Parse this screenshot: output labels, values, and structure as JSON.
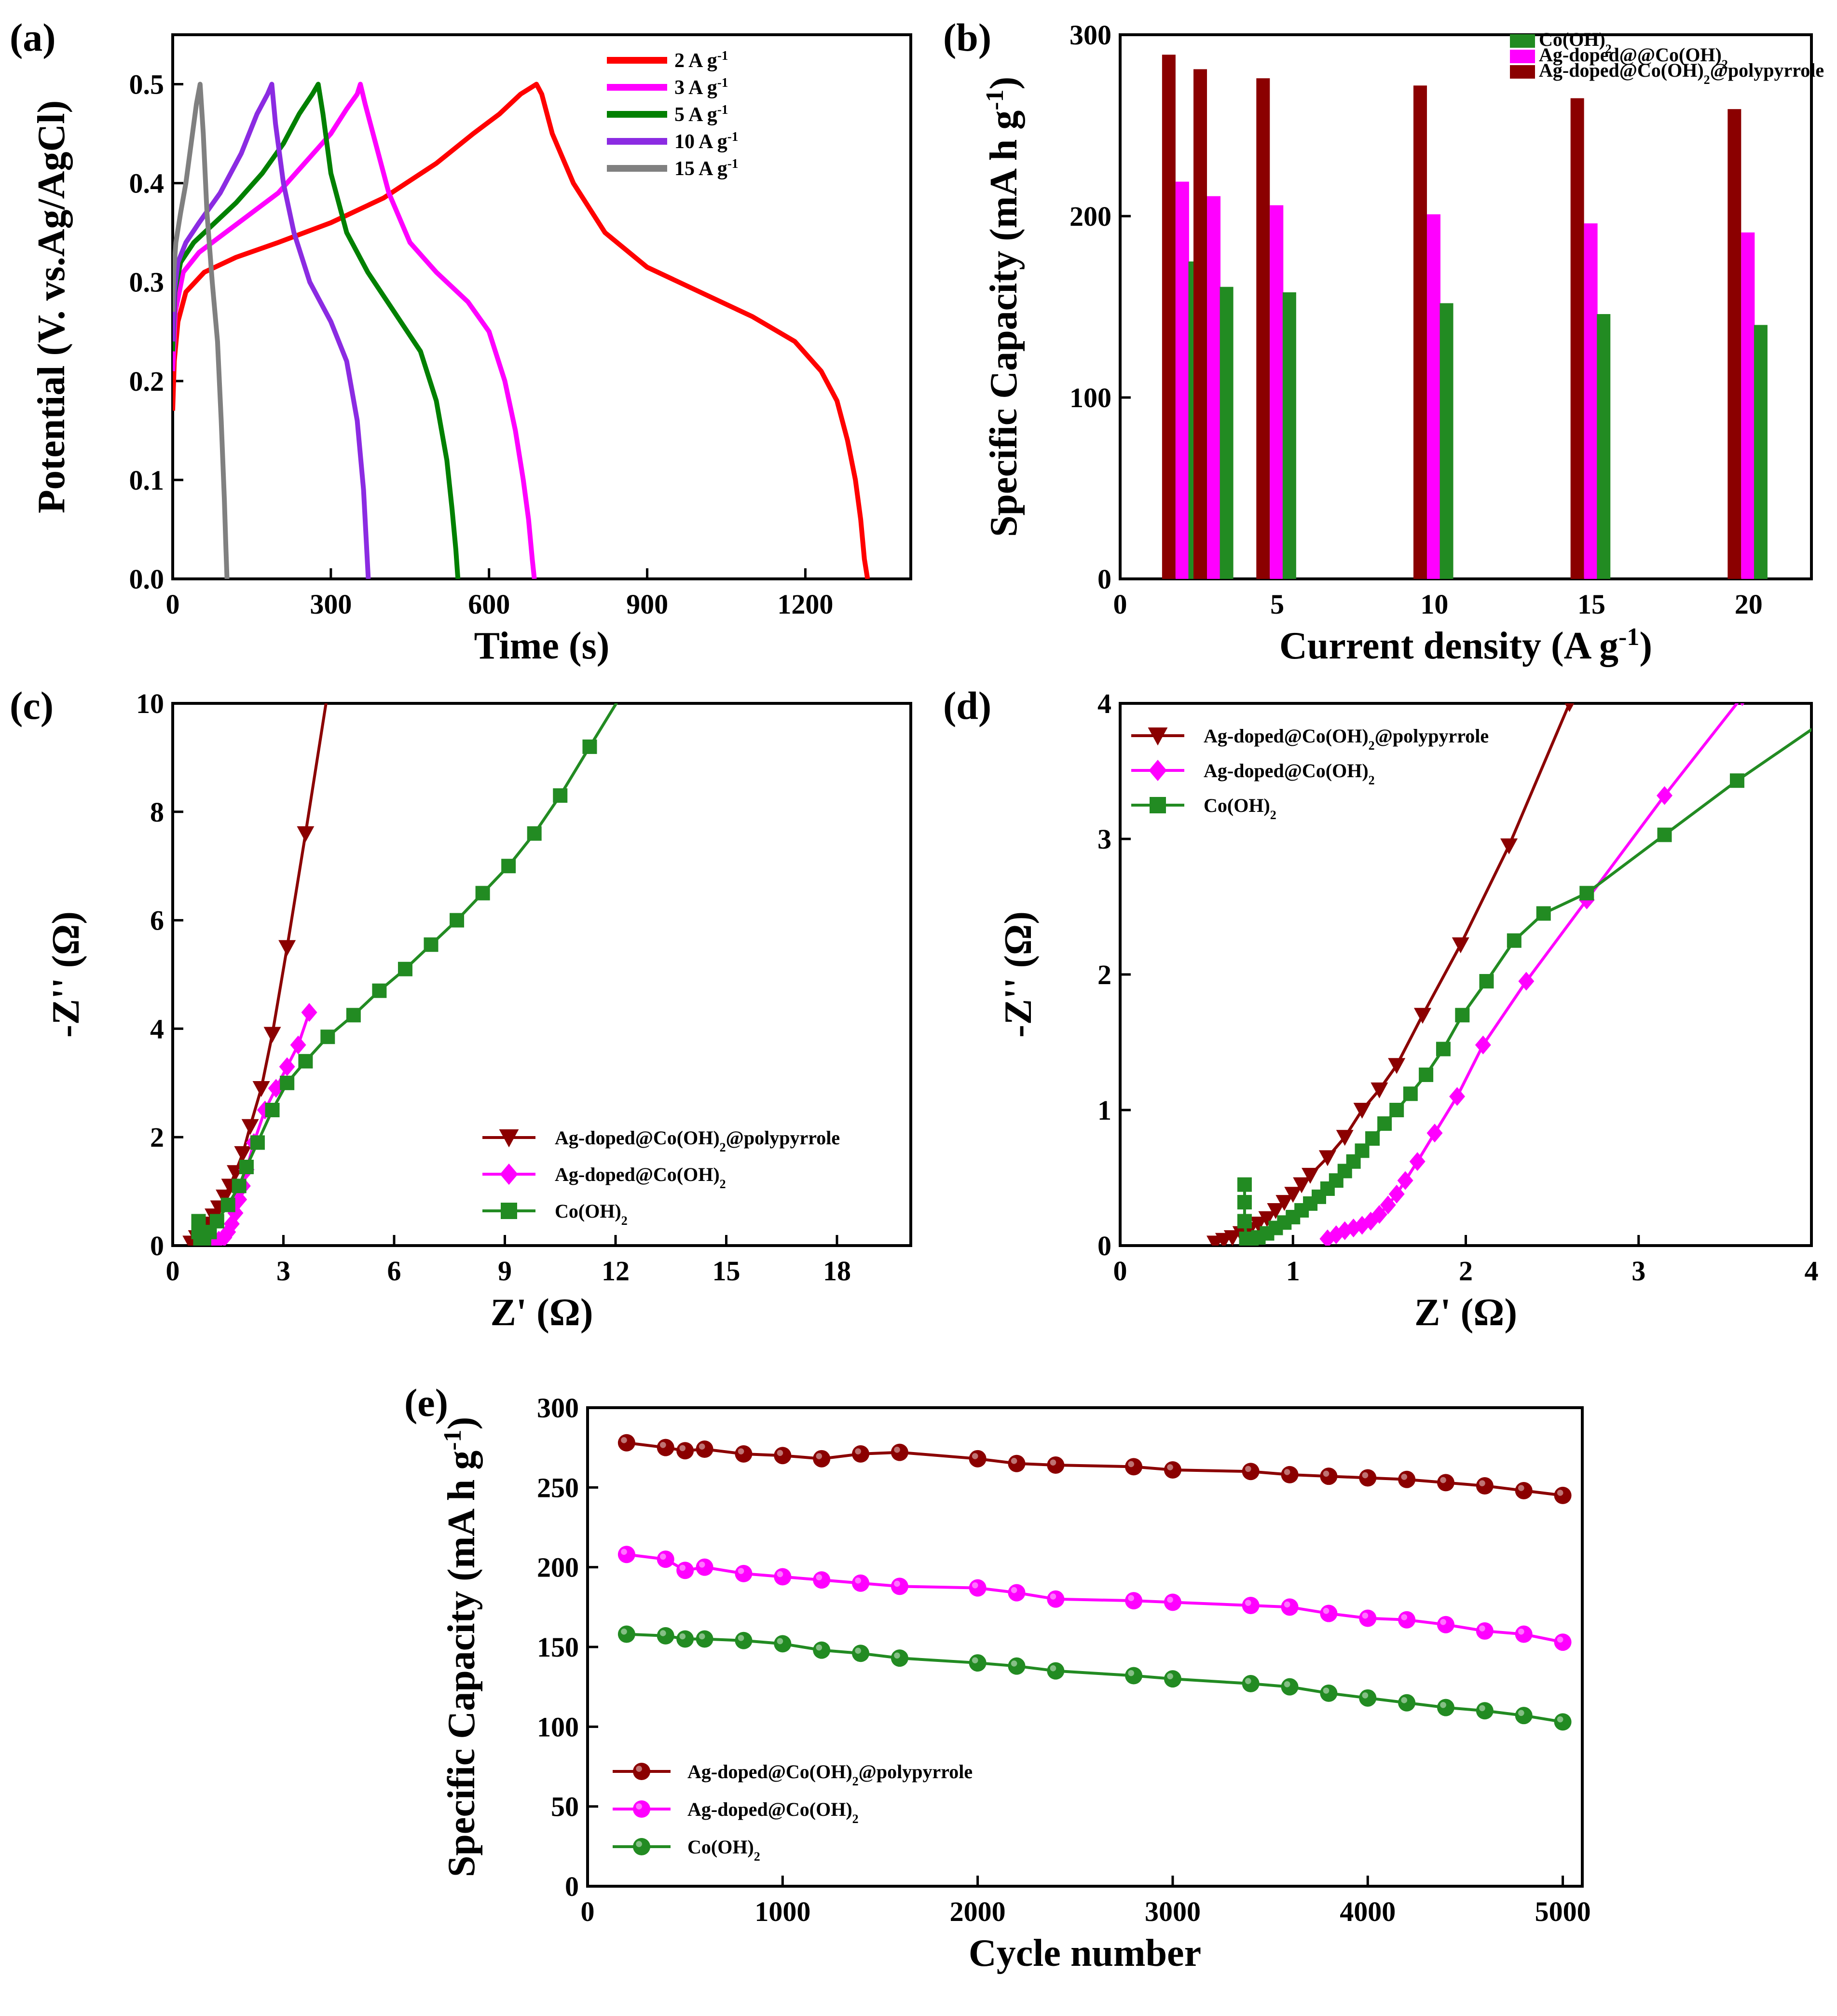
{
  "chart_data": [
    {
      "id": "a",
      "type": "line",
      "panel_label": "(a)",
      "xlabel": "Time (s)",
      "ylabel": "Potential (V. vs.Ag/AgCl)",
      "xlim": [
        0,
        1400
      ],
      "ylim": [
        0,
        0.55
      ],
      "xticks": [
        0,
        300,
        600,
        900,
        1200
      ],
      "yticks": [
        0.0,
        0.1,
        0.2,
        0.3,
        0.4,
        0.5
      ],
      "ytick_labels": [
        "0.0",
        "0.1",
        "0.2",
        "0.3",
        "0.4",
        "0.5"
      ],
      "series": [
        {
          "name": "2 A g",
          "sup": "-1",
          "color": "#ff0000",
          "x": [
            0,
            3,
            10,
            25,
            60,
            120,
            200,
            300,
            400,
            500,
            570,
            620,
            660,
            690,
            700,
            720,
            760,
            820,
            900,
            1000,
            1100,
            1180,
            1230,
            1260,
            1280,
            1295,
            1305,
            1312,
            1318
          ],
          "y": [
            0.17,
            0.22,
            0.26,
            0.29,
            0.31,
            0.325,
            0.34,
            0.36,
            0.385,
            0.42,
            0.45,
            0.47,
            0.49,
            0.5,
            0.49,
            0.45,
            0.4,
            0.35,
            0.315,
            0.29,
            0.265,
            0.24,
            0.21,
            0.18,
            0.14,
            0.1,
            0.06,
            0.02,
            0.0
          ]
        },
        {
          "name": "3 A g",
          "sup": "-1",
          "color": "#ff00ff",
          "x": [
            0,
            5,
            20,
            50,
            100,
            150,
            200,
            250,
            300,
            330,
            350,
            356,
            365,
            380,
            410,
            450,
            500,
            560,
            600,
            630,
            650,
            665,
            675,
            682,
            686
          ],
          "y": [
            0.21,
            0.27,
            0.31,
            0.33,
            0.35,
            0.37,
            0.39,
            0.42,
            0.45,
            0.475,
            0.49,
            0.5,
            0.48,
            0.45,
            0.39,
            0.34,
            0.31,
            0.28,
            0.25,
            0.2,
            0.15,
            0.1,
            0.06,
            0.02,
            0.0
          ]
        },
        {
          "name": "5 A g",
          "sup": "-1",
          "color": "#008000",
          "x": [
            0,
            4,
            15,
            40,
            80,
            120,
            170,
            210,
            240,
            265,
            276,
            285,
            300,
            330,
            370,
            420,
            470,
            500,
            520,
            530,
            537,
            541
          ],
          "y": [
            0.23,
            0.29,
            0.32,
            0.34,
            0.36,
            0.38,
            0.41,
            0.44,
            0.47,
            0.49,
            0.5,
            0.47,
            0.41,
            0.35,
            0.31,
            0.27,
            0.23,
            0.18,
            0.12,
            0.07,
            0.03,
            0.0
          ]
        },
        {
          "name": "10 A g",
          "sup": "-1",
          "color": "#8b2be2",
          "x": [
            0,
            3,
            10,
            25,
            50,
            90,
            130,
            160,
            180,
            188,
            195,
            210,
            230,
            260,
            300,
            330,
            350,
            362,
            368,
            371
          ],
          "y": [
            0.24,
            0.29,
            0.32,
            0.34,
            0.36,
            0.39,
            0.43,
            0.47,
            0.49,
            0.5,
            0.46,
            0.4,
            0.35,
            0.3,
            0.26,
            0.22,
            0.16,
            0.09,
            0.03,
            0.0
          ]
        },
        {
          "name": "15 A g",
          "sup": "-1",
          "color": "#808080",
          "x": [
            0,
            2,
            6,
            15,
            25,
            35,
            45,
            52,
            58,
            65,
            75,
            85,
            92,
            98,
            101,
            103
          ],
          "y": [
            0.27,
            0.31,
            0.34,
            0.37,
            0.4,
            0.44,
            0.48,
            0.5,
            0.45,
            0.37,
            0.3,
            0.24,
            0.16,
            0.08,
            0.03,
            0.0
          ]
        }
      ]
    },
    {
      "id": "b",
      "type": "bar",
      "panel_label": "(b)",
      "xlabel": "Current density (A g",
      "xlabel_sup": "-1",
      "xlabel_end": ")",
      "ylabel": "Specific Capacity (mA h g",
      "ylabel_sup": "-1",
      "ylabel_end": ")",
      "xlim": [
        0,
        22
      ],
      "ylim": [
        0,
        300
      ],
      "xticks": [
        0,
        5,
        10,
        15,
        20
      ],
      "yticks": [
        0,
        100,
        200,
        300
      ],
      "categories": [
        2,
        3,
        5,
        10,
        15,
        20
      ],
      "series": [
        {
          "name": "Co(OH)",
          "sub": "2",
          "end": "",
          "color": "#228b22",
          "values": [
            175,
            161,
            158,
            152,
            146,
            140
          ]
        },
        {
          "name": "Ag-doped@@Co(OH)",
          "sub": "2",
          "end": "",
          "color": "#ff00ff",
          "values": [
            219,
            211,
            206,
            201,
            196,
            191
          ]
        },
        {
          "name": "Ag-doped@Co(OH)",
          "sub": "2",
          "end": "@polypyrrole",
          "color": "#8b0000",
          "values": [
            289,
            281,
            276,
            272,
            265,
            259
          ]
        }
      ]
    },
    {
      "id": "c",
      "type": "line",
      "panel_label": "(c)",
      "xlabel": "Z' (Ω)",
      "ylabel": "-Z'' (Ω)",
      "xlim": [
        0,
        20
      ],
      "ylim": [
        0,
        10
      ],
      "xticks": [
        0,
        3,
        6,
        9,
        12,
        15,
        18
      ],
      "yticks": [
        0,
        2,
        4,
        6,
        8,
        10
      ],
      "series": [
        {
          "name": "Ag-doped@Co(OH)",
          "sub": "2",
          "end": "@polypyrrole",
          "color": "#8b0000",
          "marker": "triangle-down",
          "x": [
            0.5,
            0.65,
            0.8,
            0.95,
            1.1,
            1.25,
            1.4,
            1.55,
            1.7,
            1.9,
            2.1,
            2.4,
            2.7,
            3.1,
            3.6,
            4.2
          ],
          "y": [
            0.05,
            0.15,
            0.25,
            0.4,
            0.55,
            0.7,
            0.9,
            1.1,
            1.35,
            1.7,
            2.2,
            2.9,
            3.9,
            5.5,
            7.6,
            10.2
          ]
        },
        {
          "name": "Ag-doped@Co(OH)",
          "sub": "2",
          "end": "",
          "color": "#ff00ff",
          "marker": "diamond",
          "x": [
            1.1,
            1.25,
            1.4,
            1.5,
            1.6,
            1.7,
            1.8,
            1.9,
            2.0,
            2.2,
            2.5,
            2.8,
            3.1,
            3.4,
            3.7
          ],
          "y": [
            0.05,
            0.1,
            0.15,
            0.25,
            0.4,
            0.6,
            0.85,
            1.1,
            1.4,
            1.9,
            2.5,
            2.9,
            3.3,
            3.7,
            4.3
          ]
        },
        {
          "name": "Co(OH)",
          "sub": "2",
          "end": "",
          "color": "#228b22",
          "marker": "square",
          "x": [
            0.7,
            0.7,
            0.75,
            0.85,
            1.0,
            1.2,
            1.5,
            1.8,
            2.0,
            2.3,
            2.7,
            3.1,
            3.6,
            4.2,
            4.9,
            5.6,
            6.3,
            7.0,
            7.7,
            8.4,
            9.1,
            9.8,
            10.5,
            11.3,
            12.2
          ],
          "y": [
            0.45,
            0.25,
            0.05,
            0.1,
            0.25,
            0.45,
            0.75,
            1.1,
            1.45,
            1.9,
            2.5,
            3.0,
            3.4,
            3.85,
            4.25,
            4.7,
            5.1,
            5.55,
            6.0,
            6.5,
            7.0,
            7.6,
            8.3,
            9.2,
            10.2
          ]
        }
      ]
    },
    {
      "id": "d",
      "type": "line",
      "panel_label": "(d)",
      "xlabel": "Z' (Ω)",
      "ylabel": "-Z'' (Ω)",
      "xlim": [
        0,
        4
      ],
      "ylim": [
        0,
        4
      ],
      "xticks": [
        0,
        1,
        2,
        3,
        4
      ],
      "yticks": [
        0,
        1,
        2,
        3,
        4
      ],
      "series": [
        {
          "name": "Ag-doped@Co(OH)",
          "sub": "2",
          "end": "@polypyrrole",
          "color": "#8b0000",
          "marker": "triangle-down",
          "x": [
            0.55,
            0.6,
            0.65,
            0.7,
            0.75,
            0.8,
            0.85,
            0.9,
            0.95,
            1.0,
            1.05,
            1.1,
            1.2,
            1.3,
            1.4,
            1.5,
            1.6,
            1.75,
            1.97,
            2.25,
            2.6
          ],
          "y": [
            0.02,
            0.04,
            0.06,
            0.09,
            0.12,
            0.16,
            0.2,
            0.26,
            0.32,
            0.38,
            0.45,
            0.52,
            0.65,
            0.8,
            1.0,
            1.15,
            1.33,
            1.7,
            2.22,
            2.95,
            4.0
          ]
        },
        {
          "name": "Ag-doped@Co(OH)",
          "sub": "2",
          "end": "",
          "color": "#ff00ff",
          "marker": "diamond",
          "x": [
            1.2,
            1.25,
            1.3,
            1.35,
            1.4,
            1.45,
            1.5,
            1.55,
            1.6,
            1.65,
            1.72,
            1.82,
            1.95,
            2.1,
            2.35,
            2.7,
            3.15,
            3.6
          ],
          "y": [
            0.05,
            0.08,
            0.11,
            0.13,
            0.15,
            0.18,
            0.23,
            0.3,
            0.38,
            0.48,
            0.62,
            0.83,
            1.1,
            1.48,
            1.95,
            2.55,
            3.32,
            4.05
          ]
        },
        {
          "name": "Co(OH)",
          "sub": "2",
          "end": "",
          "color": "#228b22",
          "marker": "square",
          "x": [
            0.72,
            0.72,
            0.72,
            0.73,
            0.76,
            0.8,
            0.85,
            0.9,
            0.95,
            1.0,
            1.05,
            1.1,
            1.15,
            1.2,
            1.25,
            1.3,
            1.35,
            1.4,
            1.46,
            1.53,
            1.6,
            1.68,
            1.77,
            1.87,
            1.98,
            2.12,
            2.28,
            2.45,
            2.7,
            3.15,
            3.57,
            4.05
          ],
          "y": [
            0.45,
            0.32,
            0.18,
            0.05,
            0.04,
            0.06,
            0.09,
            0.13,
            0.17,
            0.21,
            0.26,
            0.31,
            0.36,
            0.42,
            0.48,
            0.55,
            0.62,
            0.7,
            0.79,
            0.9,
            1.0,
            1.12,
            1.26,
            1.45,
            1.7,
            1.95,
            2.25,
            2.45,
            2.6,
            3.03,
            3.43,
            3.85
          ]
        }
      ]
    },
    {
      "id": "e",
      "type": "line",
      "panel_label": "(e)",
      "xlabel": "Cycle number",
      "ylabel": "Specific Capacity (mA h g",
      "ylabel_sup": "-1",
      "ylabel_end": ")",
      "xlim": [
        0,
        5100
      ],
      "ylim": [
        0,
        300
      ],
      "xticks": [
        0,
        1000,
        2000,
        3000,
        4000,
        5000
      ],
      "yticks": [
        0,
        50,
        100,
        150,
        200,
        250,
        300
      ],
      "x": [
        200,
        400,
        500,
        600,
        800,
        1000,
        1200,
        1400,
        1600,
        2000,
        2200,
        2400,
        2800,
        3000,
        3400,
        3600,
        3800,
        4000,
        4200,
        4400,
        4600,
        4800,
        5000
      ],
      "series": [
        {
          "name": "Ag-doped@Co(OH)",
          "sub": "2",
          "end": "@polypyrrole",
          "color": "#8b0000",
          "marker": "circle",
          "values": [
            278,
            275,
            273,
            274,
            271,
            270,
            268,
            271,
            272,
            268,
            265,
            264,
            263,
            261,
            260,
            258,
            257,
            256,
            255,
            253,
            251,
            248,
            245
          ]
        },
        {
          "name": "Ag-doped@Co(OH)",
          "sub": "2",
          "end": "",
          "color": "#ff00ff",
          "marker": "circle",
          "values": [
            208,
            205,
            198,
            200,
            196,
            194,
            192,
            190,
            188,
            187,
            184,
            180,
            179,
            178,
            176,
            175,
            171,
            168,
            167,
            164,
            160,
            158,
            153
          ]
        },
        {
          "name": "Co(OH)",
          "sub": "2",
          "end": "",
          "color": "#228b22",
          "marker": "circle",
          "values": [
            158,
            157,
            155,
            155,
            154,
            152,
            148,
            146,
            143,
            140,
            138,
            135,
            132,
            130,
            127,
            125,
            121,
            118,
            115,
            112,
            110,
            107,
            103
          ]
        }
      ]
    }
  ]
}
